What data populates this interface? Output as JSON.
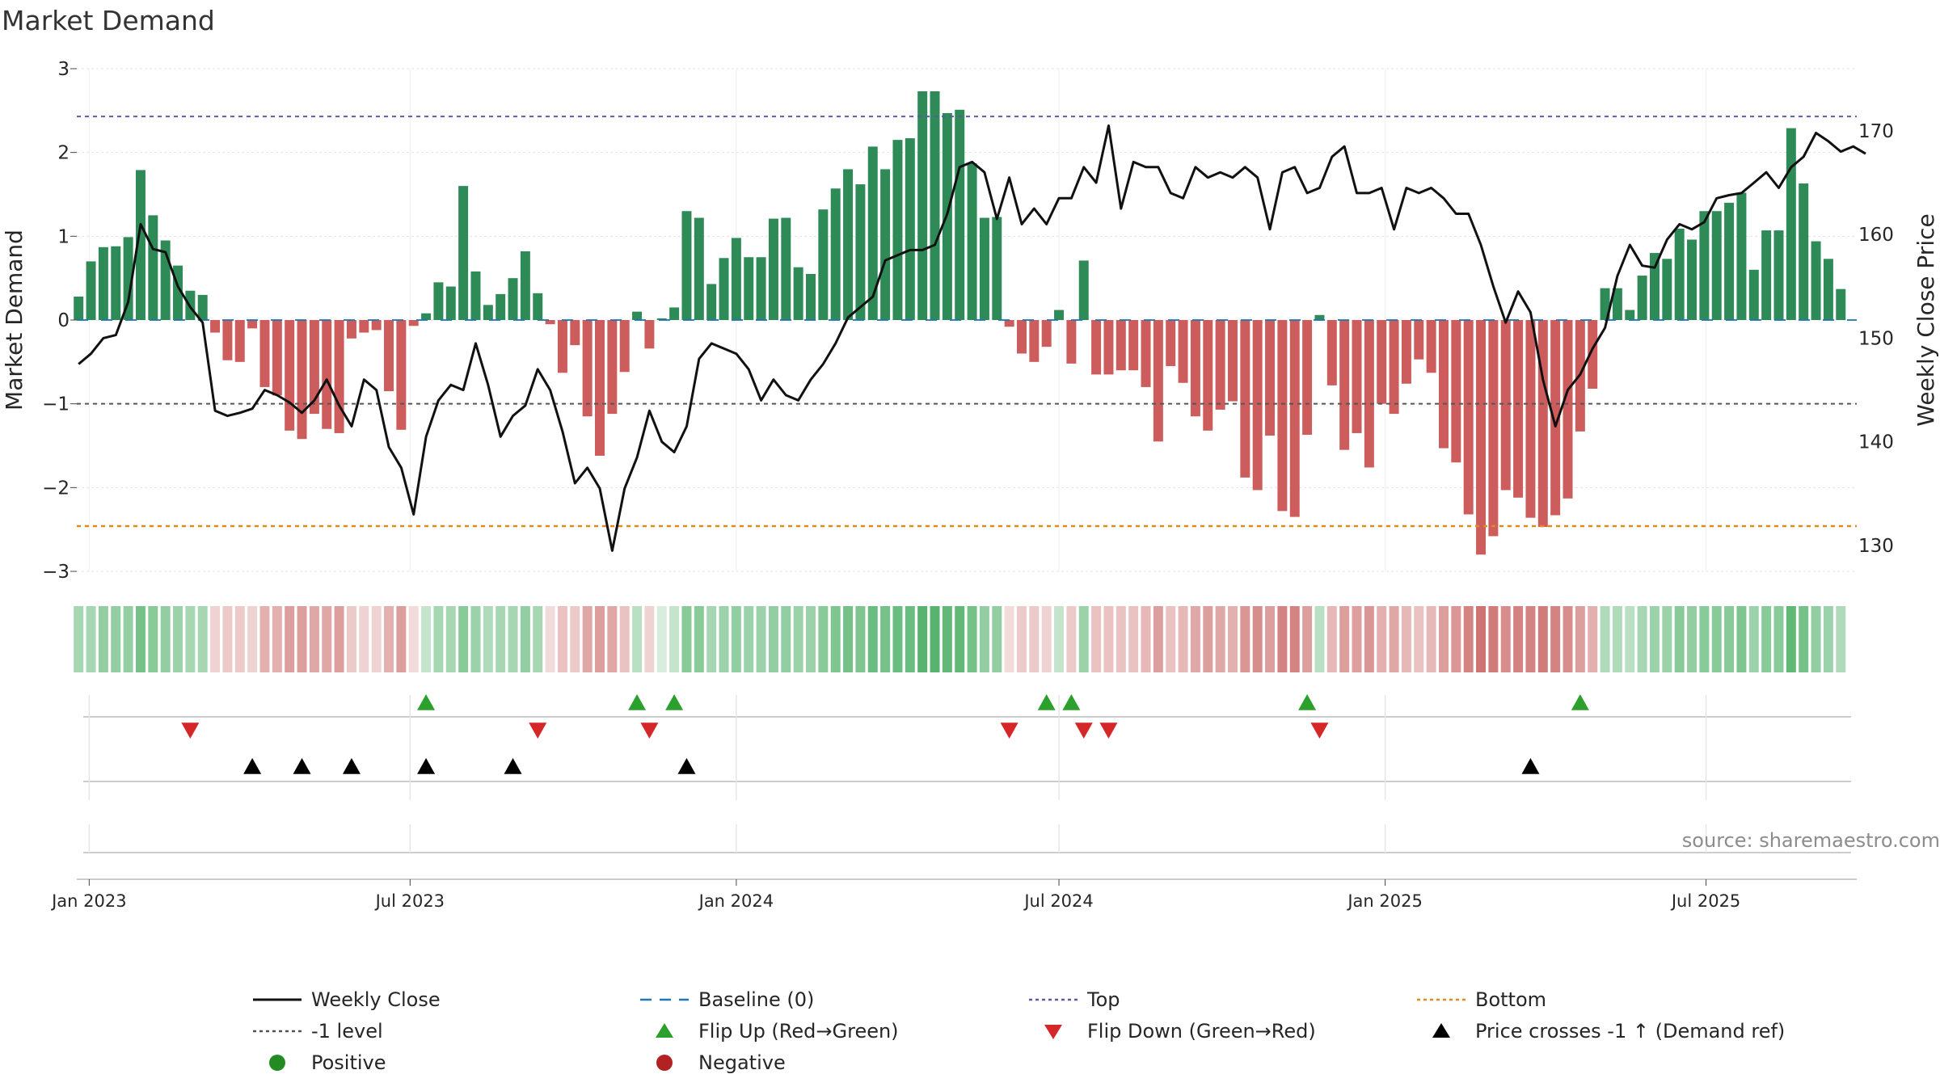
{
  "title": "Market Demand",
  "source_text": "source: sharemaestro.com",
  "colors": {
    "positive_bar": "#2e8b57",
    "negative_bar": "#cd5c5c",
    "line": "#111111",
    "top": "#5b5ba6",
    "bottom": "#e08a1e",
    "minus1": "#555555",
    "baseline": "#1f77b4",
    "flip_up": "#2ca02c",
    "flip_down": "#d62728",
    "cross": "#000000",
    "positive_dot": "#228b22",
    "negative_dot": "#b22222"
  },
  "chart_data": {
    "type": "bar",
    "title": "Market Demand",
    "ylabel": "Market Demand",
    "y2label": "Weekly Close Price",
    "ylim": [
      -3.0,
      3.0
    ],
    "y2lim": [
      127.5,
      176
    ],
    "yticks": [
      3,
      2,
      1,
      0,
      -1,
      -2,
      -3
    ],
    "y2ticks": [
      170,
      160,
      150,
      140,
      130
    ],
    "yticklabels": [
      "3",
      "2",
      "1",
      "0",
      "−1",
      "−2",
      "−3"
    ],
    "y2ticklabels": [
      "170",
      "160",
      "150",
      "140",
      "130"
    ],
    "x_start": "2022-12-25",
    "x_end": "2025-09-24",
    "x_tick_labels": [
      {
        "date": "2023-01-01",
        "label": "Jan 2023"
      },
      {
        "date": "2023-07-01",
        "label": "Jul 2023"
      },
      {
        "date": "2024-01-01",
        "label": "Jan 2024"
      },
      {
        "date": "2024-07-01",
        "label": "Jul 2024"
      },
      {
        "date": "2025-01-01",
        "label": "Jan 2025"
      },
      {
        "date": "2025-07-01",
        "label": "Jul 2025"
      }
    ],
    "first_week": "2022-12-26",
    "week_step_days": 7,
    "levels": {
      "top": 2.43,
      "bottom": -2.46,
      "minus1": -1.0,
      "baseline": 0
    },
    "demand": [
      0.28,
      0.7,
      0.87,
      0.88,
      0.99,
      1.79,
      1.25,
      0.95,
      0.65,
      0.35,
      0.3,
      -0.15,
      -0.48,
      -0.5,
      -0.1,
      -0.8,
      -0.9,
      -1.32,
      -1.42,
      -1.12,
      -1.3,
      -1.35,
      -0.22,
      -0.15,
      -0.12,
      -0.85,
      -1.31,
      -0.07,
      0.08,
      0.45,
      0.4,
      1.6,
      0.58,
      0.18,
      0.31,
      0.5,
      0.82,
      0.32,
      -0.05,
      -0.63,
      -0.3,
      -1.15,
      -1.62,
      -1.12,
      -0.62,
      0.1,
      -0.34,
      0.02,
      0.15,
      1.3,
      1.22,
      0.43,
      0.74,
      0.98,
      0.75,
      0.75,
      1.21,
      1.22,
      0.63,
      0.55,
      1.32,
      1.57,
      1.8,
      1.62,
      2.07,
      1.8,
      2.15,
      2.17,
      2.73,
      2.73,
      2.47,
      2.51,
      1.87,
      1.22,
      1.23,
      -0.08,
      -0.4,
      -0.5,
      -0.32,
      0.12,
      -0.52,
      0.71,
      -0.65,
      -0.65,
      -0.6,
      -0.6,
      -0.8,
      -1.45,
      -0.55,
      -0.75,
      -1.15,
      -1.32,
      -1.07,
      -0.97,
      -1.88,
      -2.03,
      -1.38,
      -2.28,
      -2.35,
      -1.37,
      0.06,
      -0.78,
      -1.55,
      -1.35,
      -1.76,
      -1.0,
      -1.12,
      -0.76,
      -0.47,
      -0.63,
      -1.53,
      -1.7,
      -2.32,
      -2.8,
      -2.58,
      -2.03,
      -2.12,
      -2.36,
      -2.47,
      -2.33,
      -2.13,
      -1.33,
      -0.82,
      0.38,
      0.38,
      0.12,
      0.53,
      0.8,
      0.73,
      1.09,
      0.96,
      1.3,
      1.3,
      1.4,
      1.52,
      0.6,
      1.07,
      1.07,
      2.29,
      1.63,
      0.94,
      0.73,
      0.37
    ],
    "close": [
      147.5,
      148.5,
      150.0,
      150.3,
      153.5,
      161.0,
      158.6,
      158.3,
      155.0,
      153.0,
      151.5,
      143.0,
      142.5,
      142.8,
      143.2,
      145.0,
      144.5,
      143.8,
      142.8,
      144.0,
      146.0,
      143.5,
      141.5,
      146.0,
      145.0,
      139.5,
      137.5,
      133.0,
      140.5,
      144.0,
      145.5,
      145.0,
      149.5,
      145.5,
      140.5,
      142.5,
      143.5,
      147.0,
      145.0,
      141.0,
      136.0,
      137.5,
      135.5,
      129.5,
      135.5,
      138.5,
      143.0,
      140.0,
      139.0,
      141.5,
      148.0,
      149.5,
      149.0,
      148.5,
      147.0,
      144.0,
      146.0,
      144.5,
      144.0,
      146.0,
      147.5,
      149.5,
      152.0,
      153.0,
      154.0,
      157.5,
      158.0,
      158.5,
      158.5,
      159.0,
      162.0,
      166.5,
      167.0,
      166.0,
      161.5,
      165.5,
      161.0,
      162.5,
      161.0,
      163.5,
      163.5,
      166.5,
      165.0,
      170.5,
      162.5,
      167.0,
      166.5,
      166.5,
      164.0,
      163.5,
      166.5,
      165.5,
      166.0,
      165.5,
      166.5,
      165.5,
      160.5,
      166.0,
      166.5,
      164.0,
      164.5,
      167.5,
      168.5,
      164.0,
      164.0,
      164.5,
      160.5,
      164.5,
      164.0,
      164.5,
      163.5,
      162.0,
      162.0,
      159.0,
      155.0,
      151.5,
      154.5,
      152.5,
      146.0,
      141.5,
      145.0,
      146.5,
      149.0,
      151.0,
      156.0,
      159.0,
      157.0,
      156.8,
      159.5,
      161.0,
      160.5,
      161.2,
      163.5,
      163.8,
      164.0,
      165.0,
      166.0,
      164.5,
      166.5,
      167.5,
      169.8,
      169.0,
      168.0,
      168.5,
      167.8
    ],
    "flip_up_dates": [
      "2023-07-10",
      "2023-11-06",
      "2023-11-27",
      "2024-06-24",
      "2024-07-08",
      "2024-11-18",
      "2025-04-21"
    ],
    "flip_down_dates": [
      "2023-02-27",
      "2023-09-11",
      "2023-11-13",
      "2024-06-03",
      "2024-07-15",
      "2024-07-29",
      "2024-11-25"
    ],
    "price_cross_dates": [
      "2023-04-03",
      "2023-05-01",
      "2023-05-29",
      "2023-07-10",
      "2023-08-28",
      "2023-12-04",
      "2025-03-24"
    ],
    "strip_alphas": [
      0.45,
      0.45,
      0.55,
      0.55,
      0.55,
      0.7,
      0.6,
      0.55,
      0.5,
      0.45,
      0.45,
      0.25,
      0.3,
      0.3,
      0.25,
      0.45,
      0.45,
      0.55,
      0.55,
      0.5,
      0.5,
      0.55,
      0.3,
      0.25,
      0.25,
      0.45,
      0.55,
      0.2,
      0.3,
      0.45,
      0.45,
      0.6,
      0.5,
      0.4,
      0.45,
      0.45,
      0.55,
      0.45,
      0.2,
      0.35,
      0.3,
      0.5,
      0.55,
      0.5,
      0.35,
      0.35,
      0.25,
      0.2,
      0.3,
      0.6,
      0.6,
      0.45,
      0.5,
      0.55,
      0.5,
      0.5,
      0.55,
      0.55,
      0.5,
      0.5,
      0.6,
      0.65,
      0.7,
      0.65,
      0.75,
      0.7,
      0.75,
      0.75,
      0.85,
      0.85,
      0.8,
      0.8,
      0.7,
      0.55,
      0.55,
      0.2,
      0.3,
      0.3,
      0.25,
      0.3,
      0.3,
      0.5,
      0.35,
      0.35,
      0.35,
      0.35,
      0.4,
      0.55,
      0.35,
      0.4,
      0.5,
      0.55,
      0.5,
      0.45,
      0.6,
      0.65,
      0.55,
      0.7,
      0.7,
      0.55,
      0.35,
      0.4,
      0.55,
      0.55,
      0.6,
      0.45,
      0.5,
      0.4,
      0.35,
      0.4,
      0.55,
      0.6,
      0.7,
      0.8,
      0.75,
      0.65,
      0.7,
      0.7,
      0.75,
      0.7,
      0.65,
      0.55,
      0.45,
      0.4,
      0.4,
      0.35,
      0.45,
      0.5,
      0.5,
      0.6,
      0.55,
      0.6,
      0.6,
      0.6,
      0.65,
      0.5,
      0.6,
      0.6,
      0.8,
      0.7,
      0.55,
      0.5,
      0.4
    ]
  },
  "legend": [
    {
      "label": "Weekly Close",
      "kind": "line-solid",
      "color_key": "line"
    },
    {
      "label": "Baseline (0)",
      "kind": "line-dash",
      "color_key": "baseline"
    },
    {
      "label": "Top",
      "kind": "line-dot",
      "color_key": "top"
    },
    {
      "label": "Bottom",
      "kind": "line-dot",
      "color_key": "bottom"
    },
    {
      "label": "-1 level",
      "kind": "line-dot",
      "color_key": "minus1"
    },
    {
      "label": "Flip Up (Red→Green)",
      "kind": "tri-up",
      "color_key": "flip_up"
    },
    {
      "label": "Flip Down (Green→Red)",
      "kind": "tri-down",
      "color_key": "flip_down"
    },
    {
      "label": "Price crosses -1 ↑ (Demand ref)",
      "kind": "tri-up",
      "color_key": "cross"
    },
    {
      "label": "Positive",
      "kind": "dot",
      "color_key": "positive_dot"
    },
    {
      "label": "Negative",
      "kind": "dot",
      "color_key": "negative_dot"
    }
  ]
}
